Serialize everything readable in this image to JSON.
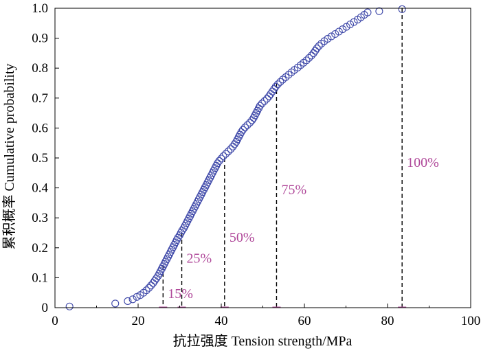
{
  "chart_data": {
    "type": "scatter",
    "title": "",
    "xlabel": "抗拉强度 Tension strength/MPa",
    "ylabel": "累积概率 Cumulative probability",
    "xlim": [
      0,
      100
    ],
    "ylim": [
      0,
      1.0
    ],
    "x_ticks": [
      "0",
      "20",
      "40",
      "60",
      "80",
      "100"
    ],
    "y_ticks": [
      "0",
      "0.1",
      "0.2",
      "0.3",
      "0.4",
      "0.5",
      "0.6",
      "0.7",
      "0.8",
      "0.9",
      "1.0"
    ],
    "grid": false,
    "legend": "none",
    "colors": {
      "marker": "#3d47a8",
      "annotation": "#b0499a",
      "axis": "#000000"
    },
    "series": [
      {
        "marker": "open-circle",
        "points": [
          [
            3.5,
            0.004
          ],
          [
            14.5,
            0.014
          ],
          [
            17.5,
            0.022
          ],
          [
            18.7,
            0.028
          ],
          [
            19.7,
            0.036
          ],
          [
            20.5,
            0.042
          ],
          [
            21.3,
            0.05
          ],
          [
            22.0,
            0.058
          ],
          [
            22.6,
            0.066
          ],
          [
            23.1,
            0.074
          ],
          [
            23.6,
            0.082
          ],
          [
            24.0,
            0.09
          ],
          [
            24.4,
            0.098
          ],
          [
            24.8,
            0.106
          ],
          [
            25.1,
            0.114
          ],
          [
            25.4,
            0.122
          ],
          [
            25.7,
            0.13
          ],
          [
            26.0,
            0.138
          ],
          [
            26.3,
            0.146
          ],
          [
            26.6,
            0.154
          ],
          [
            26.9,
            0.162
          ],
          [
            27.2,
            0.17
          ],
          [
            27.5,
            0.178
          ],
          [
            27.8,
            0.186
          ],
          [
            28.1,
            0.194
          ],
          [
            28.4,
            0.202
          ],
          [
            28.7,
            0.21
          ],
          [
            29.0,
            0.218
          ],
          [
            29.3,
            0.226
          ],
          [
            29.6,
            0.234
          ],
          [
            30.0,
            0.242
          ],
          [
            30.3,
            0.25
          ],
          [
            30.6,
            0.258
          ],
          [
            31.0,
            0.266
          ],
          [
            31.3,
            0.274
          ],
          [
            31.6,
            0.282
          ],
          [
            31.9,
            0.29
          ],
          [
            32.2,
            0.298
          ],
          [
            32.5,
            0.306
          ],
          [
            32.8,
            0.314
          ],
          [
            33.1,
            0.322
          ],
          [
            33.4,
            0.33
          ],
          [
            33.7,
            0.338
          ],
          [
            34.0,
            0.346
          ],
          [
            34.3,
            0.354
          ],
          [
            34.6,
            0.362
          ],
          [
            34.9,
            0.37
          ],
          [
            35.2,
            0.378
          ],
          [
            35.5,
            0.386
          ],
          [
            35.8,
            0.394
          ],
          [
            36.1,
            0.402
          ],
          [
            36.4,
            0.41
          ],
          [
            36.7,
            0.418
          ],
          [
            37.0,
            0.426
          ],
          [
            37.3,
            0.434
          ],
          [
            37.6,
            0.442
          ],
          [
            37.9,
            0.45
          ],
          [
            38.2,
            0.458
          ],
          [
            38.5,
            0.466
          ],
          [
            38.8,
            0.474
          ],
          [
            39.1,
            0.482
          ],
          [
            39.5,
            0.49
          ],
          [
            40.0,
            0.498
          ],
          [
            40.5,
            0.506
          ],
          [
            41.1,
            0.514
          ],
          [
            41.7,
            0.522
          ],
          [
            42.3,
            0.53
          ],
          [
            42.8,
            0.538
          ],
          [
            43.2,
            0.546
          ],
          [
            43.6,
            0.554
          ],
          [
            43.9,
            0.562
          ],
          [
            44.2,
            0.57
          ],
          [
            44.5,
            0.578
          ],
          [
            44.8,
            0.586
          ],
          [
            45.2,
            0.594
          ],
          [
            45.7,
            0.602
          ],
          [
            46.3,
            0.61
          ],
          [
            46.9,
            0.618
          ],
          [
            47.4,
            0.626
          ],
          [
            47.8,
            0.634
          ],
          [
            48.1,
            0.642
          ],
          [
            48.4,
            0.65
          ],
          [
            48.7,
            0.658
          ],
          [
            49.0,
            0.666
          ],
          [
            49.3,
            0.674
          ],
          [
            49.8,
            0.682
          ],
          [
            50.4,
            0.69
          ],
          [
            51.0,
            0.698
          ],
          [
            51.5,
            0.706
          ],
          [
            51.9,
            0.714
          ],
          [
            52.3,
            0.722
          ],
          [
            52.7,
            0.73
          ],
          [
            53.1,
            0.738
          ],
          [
            53.6,
            0.746
          ],
          [
            54.2,
            0.754
          ],
          [
            54.8,
            0.762
          ],
          [
            55.5,
            0.77
          ],
          [
            56.2,
            0.778
          ],
          [
            56.9,
            0.786
          ],
          [
            57.6,
            0.794
          ],
          [
            58.4,
            0.802
          ],
          [
            59.1,
            0.81
          ],
          [
            59.8,
            0.818
          ],
          [
            60.5,
            0.826
          ],
          [
            61.1,
            0.834
          ],
          [
            61.7,
            0.842
          ],
          [
            62.2,
            0.85
          ],
          [
            62.6,
            0.858
          ],
          [
            63.0,
            0.866
          ],
          [
            63.5,
            0.874
          ],
          [
            64.1,
            0.882
          ],
          [
            64.8,
            0.89
          ],
          [
            65.6,
            0.898
          ],
          [
            66.5,
            0.906
          ],
          [
            67.4,
            0.914
          ],
          [
            68.3,
            0.922
          ],
          [
            69.2,
            0.93
          ],
          [
            70.1,
            0.938
          ],
          [
            71.0,
            0.946
          ],
          [
            71.9,
            0.954
          ],
          [
            72.8,
            0.962
          ],
          [
            73.6,
            0.97
          ],
          [
            74.4,
            0.978
          ],
          [
            75.2,
            0.986
          ],
          [
            78.0,
            0.99
          ],
          [
            83.5,
            0.997
          ]
        ]
      }
    ],
    "annotations": [
      {
        "text": "15%",
        "x": 26.0,
        "y_top": 0.14
      },
      {
        "text": "25%",
        "x": 30.5,
        "y_top": 0.25
      },
      {
        "text": "50%",
        "x": 40.8,
        "y_top": 0.5
      },
      {
        "text": "75%",
        "x": 53.3,
        "y_top": 0.75
      },
      {
        "text": "100%",
        "x": 83.5,
        "y_top": 1.0
      }
    ]
  }
}
